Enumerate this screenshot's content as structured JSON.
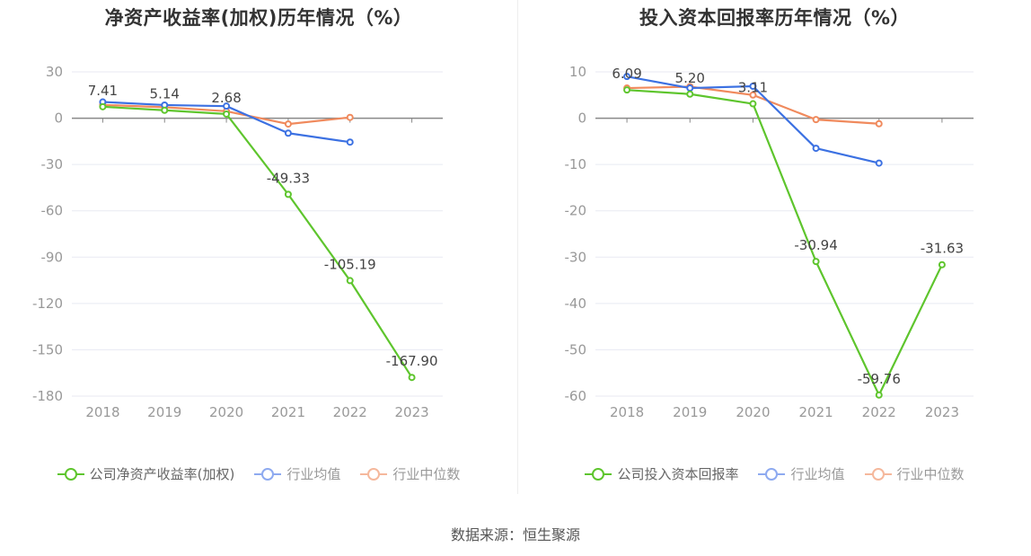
{
  "chart_data": [
    {
      "type": "line",
      "title": "净资产收益率(加权)历年情况（%）",
      "categories": [
        "2018",
        "2019",
        "2020",
        "2021",
        "2022",
        "2023"
      ],
      "yticks": [
        30,
        0,
        -30,
        -60,
        -90,
        -120,
        -150,
        -180
      ],
      "ylim": [
        -180,
        30
      ],
      "series": [
        {
          "name": "公司净资产收益率(加权)",
          "color": "#5ec52d",
          "values": [
            7.41,
            5.14,
            2.68,
            -49.33,
            -105.19,
            -167.9
          ],
          "labels": [
            "7.41",
            "5.14",
            "2.68",
            "-49.33",
            "-105.19",
            "-167.90"
          ]
        },
        {
          "name": "行业均值",
          "color": "#3c71e2",
          "values": [
            10.5,
            8.5,
            7.8,
            -9.7,
            -15.5,
            null
          ]
        },
        {
          "name": "行业中位数",
          "color": "#f08a5d",
          "values": [
            8.6,
            7.1,
            4.5,
            -3.8,
            0.5,
            null
          ]
        }
      ]
    },
    {
      "type": "line",
      "title": "投入资本回报率历年情况（%）",
      "categories": [
        "2018",
        "2019",
        "2020",
        "2021",
        "2022",
        "2023"
      ],
      "yticks": [
        10,
        0,
        -10,
        -20,
        -30,
        -40,
        -50,
        -60
      ],
      "ylim": [
        -60,
        10
      ],
      "series": [
        {
          "name": "公司投入资本回报率",
          "color": "#5ec52d",
          "values": [
            6.09,
            5.2,
            3.11,
            -30.94,
            -59.76,
            -31.63
          ],
          "labels": [
            "6.09",
            "5.20",
            "3.11",
            "-30.94",
            "-59.76",
            "-31.63"
          ]
        },
        {
          "name": "行业均值",
          "color": "#3c71e2",
          "values": [
            9.0,
            6.5,
            6.9,
            -6.5,
            -9.7,
            null
          ]
        },
        {
          "name": "行业中位数",
          "color": "#f08a5d",
          "values": [
            6.5,
            6.8,
            5.0,
            -0.3,
            -1.2,
            null
          ]
        }
      ]
    }
  ],
  "legends": [
    {
      "company": "公司净资产收益率(加权)",
      "avg": "行业均值",
      "median": "行业中位数"
    },
    {
      "company": "公司投入资本回报率",
      "avg": "行业均值",
      "median": "行业中位数"
    }
  ],
  "colors": {
    "company": "#5ec52d",
    "avg": "#3c71e2",
    "median": "#f08a5d",
    "avg_legend": "#8eaaf0",
    "median_legend": "#f5b89c"
  },
  "source": "数据来源：恒生聚源"
}
